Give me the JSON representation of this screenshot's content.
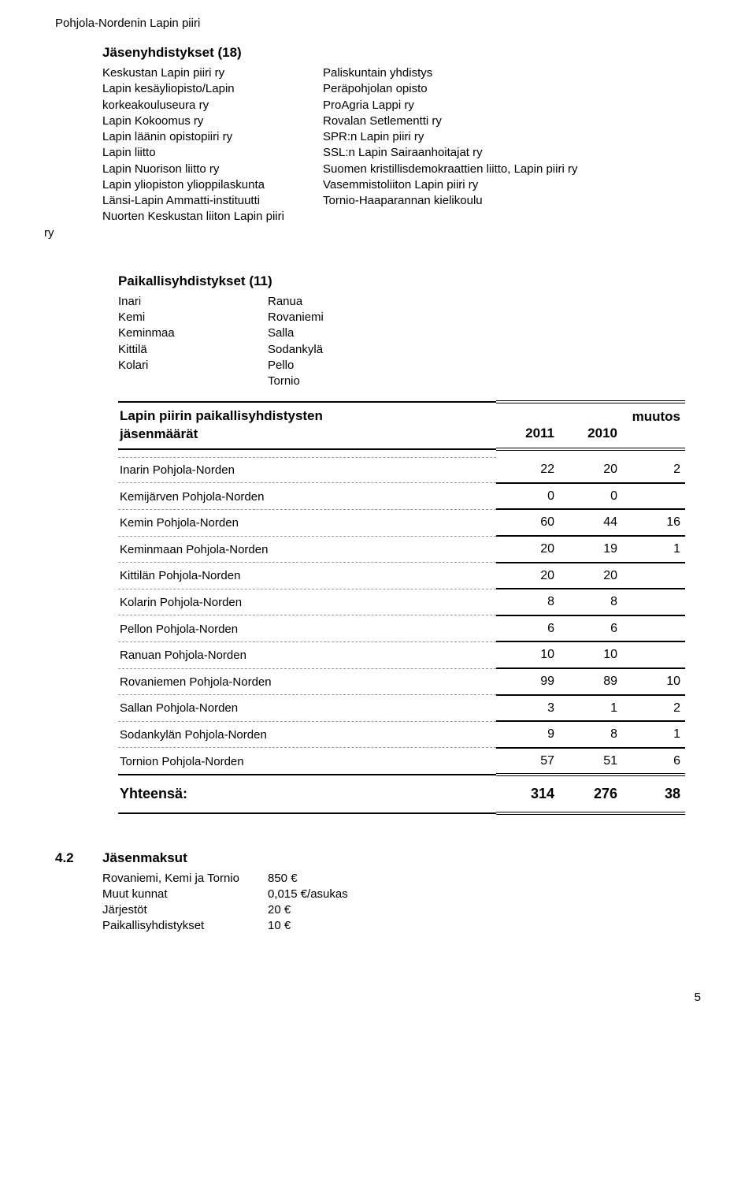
{
  "page_header": "Pohjola-Nordenin Lapin piiri",
  "jasen": {
    "heading": "Jäsenyhdistykset (18)",
    "left": [
      "Keskustan Lapin piiri ry",
      "Lapin kesäyliopisto/Lapin",
      "korkeakouluseura ry",
      "Lapin Kokoomus ry",
      "Lapin läänin opistopiiri ry",
      "Lapin liitto",
      "Lapin Nuorison liitto ry",
      "Lapin yliopiston ylioppilaskunta",
      "Länsi-Lapin Ammatti-instituutti",
      "Nuorten Keskustan liiton Lapin piiri"
    ],
    "right": [
      "Paliskuntain yhdistys",
      "Peräpohjolan opisto",
      "ProAgria Lappi ry",
      "Rovalan Setlementti ry",
      "SPR:n Lapin piiri ry",
      "SSL:n Lapin Sairaanhoitajat ry",
      "Suomen kristillisdemokraattien liitto, Lapin piiri ry",
      "Vasemmistoliiton Lapin piiri ry",
      "Tornio-Haaparannan kielikoulu"
    ],
    "hang": "ry"
  },
  "paikallis": {
    "heading": "Paikallisyhdistykset (11)",
    "pairs": [
      [
        "Inari",
        "Ranua"
      ],
      [
        "Kemi",
        "Rovaniemi"
      ],
      [
        "Keminmaa",
        "Salla"
      ],
      [
        "Kittilä",
        "Sodankylä"
      ],
      [
        "Kolari",
        "Pello"
      ],
      [
        "",
        "Tornio"
      ]
    ]
  },
  "table": {
    "title_line1": "Lapin piirin paikallisyhdistysten",
    "title_line2": "jäsenmäärät",
    "col_2011": "2011",
    "col_2010": "2010",
    "col_muutos": "muutos",
    "rows": [
      {
        "name": "Inarin Pohjola-Norden",
        "a": "22",
        "b": "20",
        "c": "2"
      },
      {
        "name": "Kemijärven Pohjola-Norden",
        "a": "0",
        "b": "0",
        "c": ""
      },
      {
        "name": "Kemin Pohjola-Norden",
        "a": "60",
        "b": "44",
        "c": "16"
      },
      {
        "name": "Keminmaan Pohjola-Norden",
        "a": "20",
        "b": "19",
        "c": "1"
      },
      {
        "name": "Kittilän Pohjola-Norden",
        "a": "20",
        "b": "20",
        "c": ""
      },
      {
        "name": "Kolarin Pohjola-Norden",
        "a": "8",
        "b": "8",
        "c": ""
      },
      {
        "name": "Pellon Pohjola-Norden",
        "a": "6",
        "b": "6",
        "c": ""
      },
      {
        "name": "Ranuan Pohjola-Norden",
        "a": "10",
        "b": "10",
        "c": ""
      },
      {
        "name": "Rovaniemen Pohjola-Norden",
        "a": "99",
        "b": "89",
        "c": "10"
      },
      {
        "name": "Sallan Pohjola-Norden",
        "a": "3",
        "b": "1",
        "c": "2"
      },
      {
        "name": "Sodankylän Pohjola-Norden",
        "a": "9",
        "b": "8",
        "c": "1"
      },
      {
        "name": "Tornion Pohjola-Norden",
        "a": "57",
        "b": "51",
        "c": "6"
      }
    ],
    "total_label": "Yhteensä:",
    "total_a": "314",
    "total_b": "276",
    "total_c": "38"
  },
  "sec4": {
    "num": "4.2",
    "title": "Jäsenmaksut",
    "rows": [
      [
        "Rovaniemi, Kemi ja Tornio",
        "850 €"
      ],
      [
        "Muut kunnat",
        "0,015 €/asukas"
      ],
      [
        "Järjestöt",
        "20 €"
      ],
      [
        "Paikallisyhdistykset",
        "10 €"
      ]
    ]
  },
  "page_number": "5"
}
